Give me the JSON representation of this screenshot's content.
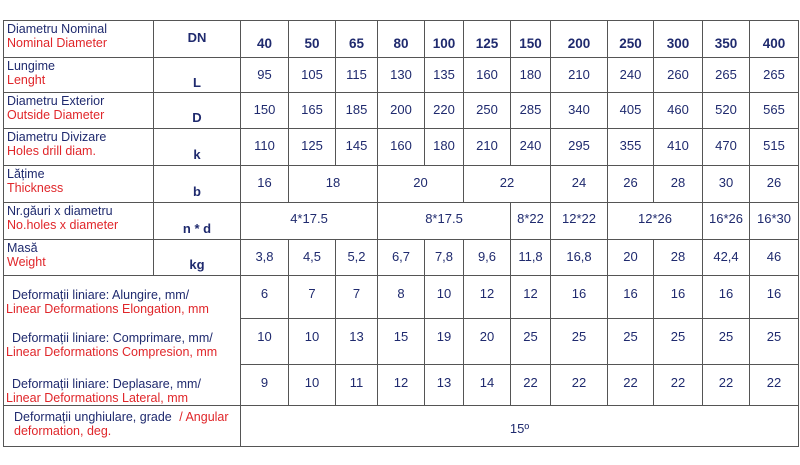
{
  "colors": {
    "ro_text": "#1f2a6e",
    "en_text": "#e0262a",
    "border": "#555555"
  },
  "header": {
    "ro": "Diametru Nominal",
    "en": "Nominal Diameter",
    "symbol": "DN",
    "dn": [
      "40",
      "50",
      "65",
      "80",
      "100",
      "125",
      "150",
      "200",
      "250",
      "300",
      "350",
      "400"
    ]
  },
  "rows": [
    {
      "ro": "Lungime",
      "en": "Lenght",
      "symbol": "L",
      "cells": [
        {
          "v": "95"
        },
        {
          "v": "105"
        },
        {
          "v": "115"
        },
        {
          "v": "130"
        },
        {
          "v": "135"
        },
        {
          "v": "160"
        },
        {
          "v": "180"
        },
        {
          "v": "210"
        },
        {
          "v": "240"
        },
        {
          "v": "260"
        },
        {
          "v": "265"
        },
        {
          "v": "265"
        }
      ]
    },
    {
      "ro": "Diametru Exterior",
      "en": "Outside Diameter",
      "symbol": "D",
      "cells": [
        {
          "v": "150"
        },
        {
          "v": "165"
        },
        {
          "v": "185"
        },
        {
          "v": "200"
        },
        {
          "v": "220"
        },
        {
          "v": "250"
        },
        {
          "v": "285"
        },
        {
          "v": "340"
        },
        {
          "v": "405"
        },
        {
          "v": "460"
        },
        {
          "v": "520"
        },
        {
          "v": "565"
        }
      ]
    },
    {
      "ro": "Diametru Divizare",
      "en": "Holes drill diam.",
      "symbol": "k",
      "cells": [
        {
          "v": "110"
        },
        {
          "v": "125"
        },
        {
          "v": "145"
        },
        {
          "v": "160"
        },
        {
          "v": "180"
        },
        {
          "v": "210"
        },
        {
          "v": "240"
        },
        {
          "v": "295"
        },
        {
          "v": "355"
        },
        {
          "v": "410"
        },
        {
          "v": "470"
        },
        {
          "v": "515"
        }
      ]
    },
    {
      "ro": "Lățime",
      "en": "Thickness",
      "symbol": "b",
      "cells": [
        {
          "v": "16"
        },
        {
          "v": "18",
          "span": 2
        },
        {
          "v": "20",
          "span": 2
        },
        {
          "v": "22",
          "span": 2
        },
        {
          "v": "24"
        },
        {
          "v": "26"
        },
        {
          "v": "28"
        },
        {
          "v": "30"
        },
        {
          "v": "26"
        }
      ]
    },
    {
      "ro": "Nr.găuri x diametru",
      "en": "No.holes x diameter",
      "symbol": "n * d",
      "cells": [
        {
          "v": "4*17.5",
          "span": 3
        },
        {
          "v": "8*17.5",
          "span": 3
        },
        {
          "v": "8*22"
        },
        {
          "v": "12*22"
        },
        {
          "v": "12*26",
          "span": 2
        },
        {
          "v": "16*26"
        },
        {
          "v": "16*30"
        }
      ]
    },
    {
      "ro": "Masă",
      "en": "Weight",
      "symbol": "kg",
      "cells": [
        {
          "v": "3,8"
        },
        {
          "v": "4,5"
        },
        {
          "v": "5,2"
        },
        {
          "v": "6,7"
        },
        {
          "v": "7,8"
        },
        {
          "v": "9,6"
        },
        {
          "v": "11,8"
        },
        {
          "v": "16,8"
        },
        {
          "v": "20"
        },
        {
          "v": "28"
        },
        {
          "v": "42,4"
        },
        {
          "v": "46"
        }
      ]
    }
  ],
  "deformations": [
    {
      "ro": "Deformații liniare: Alungire, mm/",
      "en": "Linear Deformations Elongation, mm",
      "values": [
        "6",
        "7",
        "7",
        "8",
        "10",
        "12",
        "12",
        "16",
        "16",
        "16",
        "16",
        "16"
      ]
    },
    {
      "ro": "Deformații liniare: Comprimare, mm/",
      "en": "Linear Deformations Compresion, mm",
      "values": [
        "10",
        "10",
        "13",
        "15",
        "19",
        "20",
        "25",
        "25",
        "25",
        "25",
        "25",
        "25"
      ]
    },
    {
      "ro": "Deformații liniare: Deplasare, mm/",
      "en": "Linear Deformations Lateral, mm",
      "values": [
        "9",
        "10",
        "11",
        "12",
        "13",
        "14",
        "22",
        "22",
        "22",
        "22",
        "22",
        "22"
      ]
    }
  ],
  "angular": {
    "ro": "Deformații unghiulare, grade ",
    "en": "/ Angular deformation, deg.",
    "value": "15º"
  }
}
